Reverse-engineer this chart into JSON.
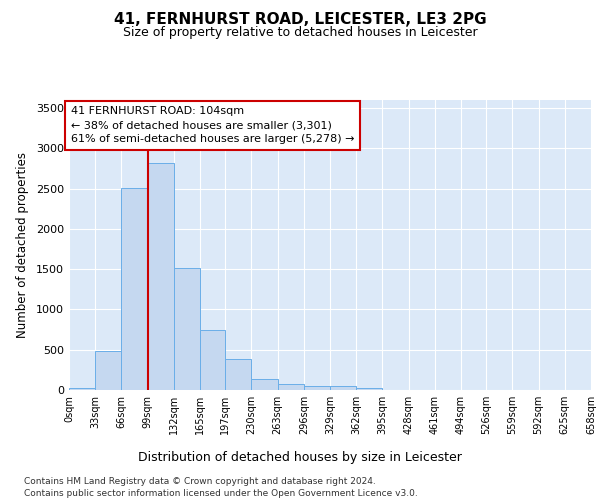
{
  "title1": "41, FERNHURST ROAD, LEICESTER, LE3 2PG",
  "title2": "Size of property relative to detached houses in Leicester",
  "xlabel": "Distribution of detached houses by size in Leicester",
  "ylabel": "Number of detached properties",
  "bar_values": [
    20,
    480,
    2510,
    2820,
    1520,
    750,
    385,
    140,
    75,
    55,
    55,
    30,
    0,
    0,
    0,
    0,
    0,
    0,
    0,
    0
  ],
  "bin_edges": [
    0,
    33,
    66,
    99,
    132,
    165,
    197,
    230,
    263,
    296,
    329,
    362,
    395,
    428,
    461,
    494,
    526,
    559,
    592,
    625,
    658
  ],
  "tick_labels": [
    "0sqm",
    "33sqm",
    "66sqm",
    "99sqm",
    "132sqm",
    "165sqm",
    "197sqm",
    "230sqm",
    "263sqm",
    "296sqm",
    "329sqm",
    "362sqm",
    "395sqm",
    "428sqm",
    "461sqm",
    "494sqm",
    "526sqm",
    "559sqm",
    "592sqm",
    "625sqm",
    "658sqm"
  ],
  "bar_color": "#c5d8f0",
  "bar_edge_color": "#6aaee8",
  "vline_x": 99,
  "vline_color": "#cc0000",
  "annotation_text": "41 FERNHURST ROAD: 104sqm\n← 38% of detached houses are smaller (3,301)\n61% of semi-detached houses are larger (5,278) →",
  "annotation_box_color": "#ffffff",
  "annotation_box_edge": "#cc0000",
  "ylim": [
    0,
    3600
  ],
  "yticks": [
    0,
    500,
    1000,
    1500,
    2000,
    2500,
    3000,
    3500
  ],
  "footer1": "Contains HM Land Registry data © Crown copyright and database right 2024.",
  "footer2": "Contains public sector information licensed under the Open Government Licence v3.0.",
  "plot_bg_color": "#dce9f8"
}
